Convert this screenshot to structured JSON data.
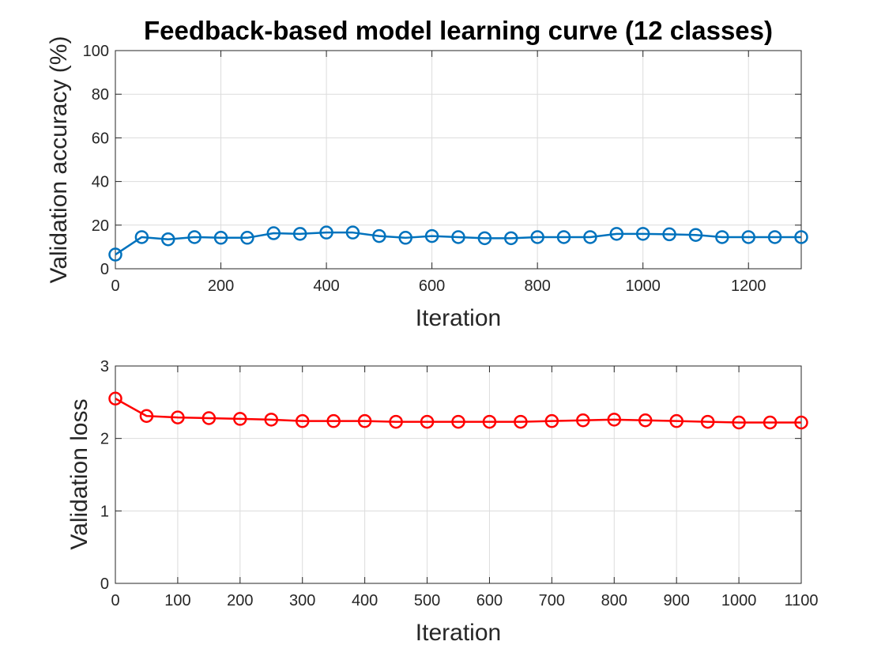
{
  "chart_data": [
    {
      "type": "line",
      "title": "Feedback-based model learning curve (12 classes)",
      "xlabel": "Iteration",
      "ylabel": "Validation accuracy (%)",
      "xlim": [
        0,
        1300
      ],
      "ylim": [
        0,
        100
      ],
      "xticks": [
        0,
        200,
        400,
        600,
        800,
        1000,
        1200
      ],
      "yticks": [
        0,
        20,
        40,
        60,
        80,
        100
      ],
      "grid": true,
      "series": [
        {
          "color": "#0072BD",
          "marker": "circle",
          "x": [
            0,
            50,
            100,
            150,
            200,
            250,
            300,
            350,
            400,
            450,
            500,
            550,
            600,
            650,
            700,
            750,
            800,
            850,
            900,
            950,
            1000,
            1050,
            1100,
            1150,
            1200,
            1250,
            1300
          ],
          "y": [
            6.5,
            14.5,
            13.5,
            14.5,
            14.2,
            14.2,
            16.3,
            16.0,
            16.6,
            16.6,
            15.0,
            14.2,
            15.0,
            14.5,
            14.0,
            14.0,
            14.5,
            14.5,
            14.5,
            16.0,
            16.0,
            15.8,
            15.5,
            14.5,
            14.5,
            14.5,
            14.5
          ]
        }
      ]
    },
    {
      "type": "line",
      "title": "",
      "xlabel": "Iteration",
      "ylabel": "Validation loss",
      "xlim": [
        0,
        1100
      ],
      "ylim": [
        0,
        3
      ],
      "xticks": [
        0,
        100,
        200,
        300,
        400,
        500,
        600,
        700,
        800,
        900,
        1000,
        1100
      ],
      "yticks": [
        0,
        1,
        2,
        3
      ],
      "grid": true,
      "series": [
        {
          "color": "#FF0000",
          "marker": "circle",
          "x": [
            0,
            50,
            100,
            150,
            200,
            250,
            300,
            350,
            400,
            450,
            500,
            550,
            600,
            650,
            700,
            750,
            800,
            850,
            900,
            950,
            1000,
            1050,
            1100
          ],
          "y": [
            2.55,
            2.31,
            2.29,
            2.28,
            2.27,
            2.26,
            2.24,
            2.24,
            2.24,
            2.23,
            2.23,
            2.23,
            2.23,
            2.23,
            2.24,
            2.25,
            2.26,
            2.25,
            2.24,
            2.23,
            2.22,
            2.22,
            2.22
          ]
        }
      ]
    }
  ]
}
